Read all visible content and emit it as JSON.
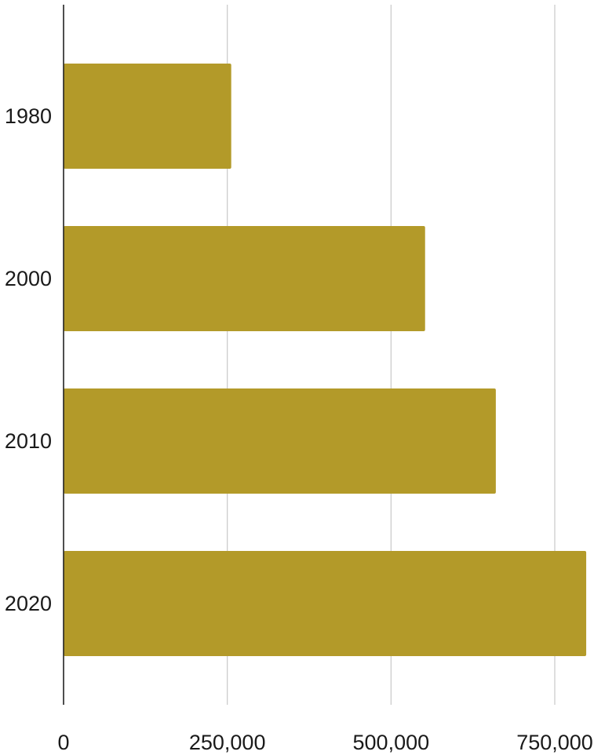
{
  "chart_data": {
    "type": "bar",
    "orientation": "horizontal",
    "categories": [
      "1980",
      "2000",
      "2010",
      "2020"
    ],
    "values": [
      256000,
      552000,
      660000,
      798000
    ],
    "xlim": [
      0,
      800000
    ],
    "x_ticks": [
      0,
      250000,
      500000,
      750000
    ],
    "x_tick_labels": [
      "0",
      "250,000",
      "500,000",
      "750,000"
    ],
    "grid": "vertical",
    "legend": "none",
    "bar_color": "#b39a29",
    "grid_color": "#c8c8c8",
    "axis_color": "#222222"
  }
}
